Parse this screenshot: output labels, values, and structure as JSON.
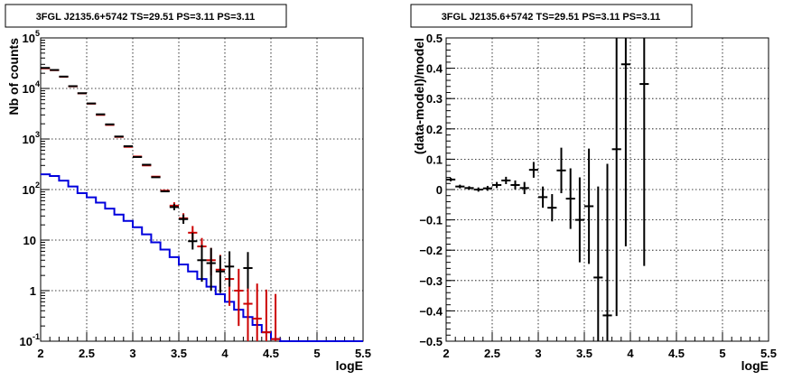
{
  "chart_data": [
    {
      "type": "line",
      "title": "3FGL J2135.6+5742 TS=29.51 PS=3.11 PS=3.11",
      "xlabel": "logE",
      "ylabel": "Nb of counts",
      "xlim": [
        2,
        5.5
      ],
      "ylim": [
        0.1,
        100000
      ],
      "yscale": "log",
      "grid": true,
      "x_ticks": [
        "2",
        "2.5",
        "3",
        "3.5",
        "4",
        "4.5",
        "5",
        "5.5"
      ],
      "y_ticks": [
        {
          "base": "10",
          "exp": "-1",
          "value": 0.1
        },
        {
          "base": "1",
          "exp": "",
          "value": 1
        },
        {
          "base": "10",
          "exp": "",
          "value": 10
        },
        {
          "base": "10",
          "exp": "2",
          "value": 100
        },
        {
          "base": "10",
          "exp": "3",
          "value": 1000
        },
        {
          "base": "10",
          "exp": "4",
          "value": 10000
        },
        {
          "base": "10",
          "exp": "5",
          "value": 100000
        }
      ],
      "bin_edges": [
        2.0,
        2.1,
        2.2,
        2.3,
        2.4,
        2.5,
        2.6,
        2.7,
        2.8,
        2.9,
        3.0,
        3.1,
        3.2,
        3.3,
        3.4,
        3.5,
        3.6,
        3.7,
        3.8,
        3.9,
        4.0,
        4.1,
        4.2,
        4.3,
        4.4,
        4.5,
        4.6,
        4.7,
        4.8,
        4.9,
        5.0,
        5.1,
        5.2,
        5.3,
        5.4,
        5.5
      ],
      "series": [
        {
          "color": "#cc0000",
          "style": "points",
          "x": [
            2.05,
            2.15,
            2.25,
            2.35,
            2.45,
            2.55,
            2.65,
            2.75,
            2.85,
            2.95,
            3.05,
            3.15,
            3.25,
            3.35,
            3.45,
            3.55,
            3.65,
            3.75,
            3.85,
            3.95,
            4.05,
            4.15,
            4.25,
            4.35,
            4.45,
            4.55
          ],
          "y": [
            25000,
            23000,
            17000,
            11000,
            8000,
            5000,
            3000,
            1900,
            1100,
            700,
            450,
            300,
            180,
            95,
            48,
            27,
            14,
            7.5,
            4.0,
            2.6,
            1.7,
            1.0,
            0.55,
            0.28,
            0.15,
            0.11
          ],
          "err_low": [
            0,
            0,
            0,
            0,
            0,
            0,
            0,
            0,
            0,
            0,
            0,
            0,
            0,
            0,
            0,
            3,
            4,
            3,
            2,
            1.5,
            1.2,
            0.8,
            0.5,
            0.28,
            0.15,
            0.11
          ],
          "err_high": [
            0,
            0,
            0,
            0,
            0,
            0,
            0,
            0,
            0,
            0,
            0,
            0,
            0,
            0,
            8,
            7,
            5,
            3.5,
            3,
            2.5,
            2,
            1.7,
            1.3,
            1.1,
            0.9,
            0.75
          ]
        },
        {
          "color": "#0000dd",
          "style": "step",
          "x": [
            2.05,
            2.15,
            2.25,
            2.35,
            2.45,
            2.55,
            2.65,
            2.75,
            2.85,
            2.95,
            3.05,
            3.15,
            3.25,
            3.35,
            3.45,
            3.55,
            3.65,
            3.75,
            3.85,
            3.95,
            4.05,
            4.15,
            4.25,
            4.35,
            4.45,
            4.55,
            4.65,
            4.75,
            4.85,
            4.95,
            5.05,
            5.15,
            5.25,
            5.35,
            5.45
          ],
          "y": [
            200,
            185,
            150,
            115,
            85,
            70,
            55,
            42,
            32,
            24,
            18,
            13,
            9,
            6.5,
            4.6,
            3.3,
            2.4,
            1.7,
            1.2,
            0.85,
            0.6,
            0.42,
            0.3,
            0.21,
            0.15,
            0.11,
            0.1,
            0.1,
            0.1,
            0.1,
            0.1,
            0.1,
            0.1,
            0.1,
            0.1
          ]
        },
        {
          "color": "#000000",
          "style": "points",
          "x": [
            2.05,
            2.15,
            2.25,
            2.35,
            2.45,
            2.55,
            2.65,
            2.75,
            2.85,
            2.95,
            3.05,
            3.15,
            3.25,
            3.35,
            3.45,
            3.55,
            3.65,
            3.75,
            3.85,
            3.95,
            4.05,
            4.25
          ],
          "y": [
            25500,
            23200,
            17200,
            11100,
            8050,
            5050,
            3080,
            1950,
            1120,
            720,
            440,
            310,
            175,
            92,
            45,
            26,
            9.5,
            4.0,
            3.5,
            2.4,
            3.0,
            2.8
          ],
          "err_low": [
            0,
            0,
            0,
            0,
            0,
            0,
            0,
            0,
            0,
            0,
            0,
            0,
            0,
            0,
            6,
            5,
            3,
            2.5,
            2.5,
            1.5,
            1.8,
            1.7
          ],
          "err_high": [
            0,
            0,
            0,
            0,
            0,
            0,
            0,
            0,
            0,
            0,
            0,
            0,
            0,
            0,
            7,
            6,
            4.5,
            4,
            3.5,
            2.5,
            3,
            3
          ]
        }
      ]
    },
    {
      "type": "scatter",
      "title": "3FGL J2135.6+5742 TS=29.51 PS=3.11 PS=3.11",
      "xlabel": "logE",
      "ylabel": "(data-model)/model",
      "xlim": [
        2,
        5.5
      ],
      "ylim": [
        -0.5,
        0.5
      ],
      "grid": true,
      "x_ticks": [
        "2",
        "2.5",
        "3",
        "3.5",
        "4",
        "4.5",
        "5",
        "5.5"
      ],
      "y_ticks": [
        "−0.5",
        "−0.4",
        "−0.3",
        "−0.2",
        "−0.1",
        "0",
        "0.1",
        "0.2",
        "0.3",
        "0.4",
        "0.5"
      ],
      "series": [
        {
          "color": "#000000",
          "x": [
            2.05,
            2.15,
            2.25,
            2.35,
            2.45,
            2.55,
            2.65,
            2.75,
            2.85,
            2.95,
            3.05,
            3.15,
            3.25,
            3.35,
            3.45,
            3.55,
            3.65,
            3.75,
            3.85,
            3.95,
            4.15
          ],
          "y": [
            0.033,
            0.01,
            0.005,
            0.0,
            0.004,
            0.015,
            0.03,
            0.015,
            0.005,
            0.065,
            -0.025,
            -0.06,
            0.063,
            -0.03,
            -0.1,
            -0.055,
            -0.29,
            -0.415,
            0.133,
            0.413,
            0.348
          ],
          "err": [
            0.006,
            0.006,
            0.006,
            0.007,
            0.008,
            0.01,
            0.012,
            0.015,
            0.02,
            0.026,
            0.035,
            0.045,
            0.075,
            0.1,
            0.14,
            0.19,
            0.3,
            0.5,
            0.55,
            0.6,
            0.6
          ]
        }
      ]
    }
  ]
}
